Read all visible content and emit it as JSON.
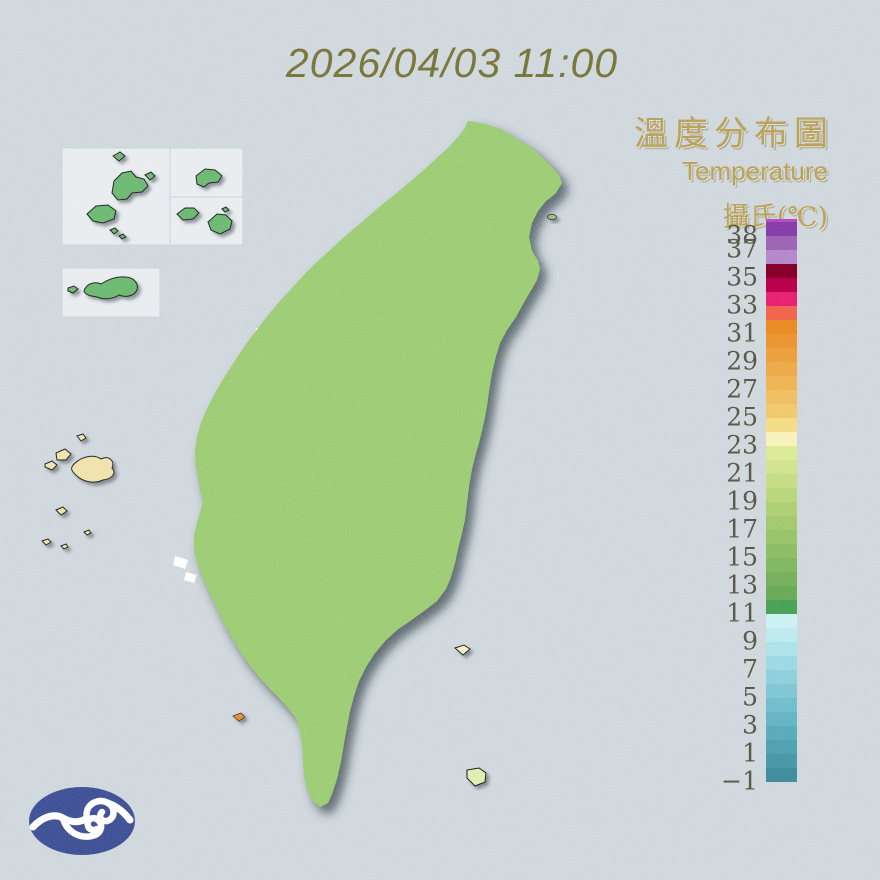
{
  "header": {
    "datetime": "2026/04/03 11:00"
  },
  "titles": {
    "zh": "溫度分布圖",
    "en": "Temperature",
    "unit": "攝氏(℃)"
  },
  "legend": {
    "scale_top_value": 39,
    "cap_color": "#B03FC0",
    "labels": [
      "38",
      "37",
      "35",
      "33",
      "31",
      "29",
      "27",
      "25",
      "23",
      "21",
      "19",
      "17",
      "15",
      "13",
      "11",
      "9",
      "7",
      "5",
      "3",
      "1",
      "−1"
    ],
    "bands": [
      {
        "t": 38,
        "c": "#7C33A0"
      },
      {
        "t": 37,
        "c": "#9659AF"
      },
      {
        "t": 36,
        "c": "#AD80C5"
      },
      {
        "t": 35,
        "c": "#7D001E"
      },
      {
        "t": 34,
        "c": "#B3003F"
      },
      {
        "t": 33,
        "c": "#E51968"
      },
      {
        "t": 32,
        "c": "#EE5B43"
      },
      {
        "t": 31,
        "c": "#E8821B"
      },
      {
        "t": 30,
        "c": "#E98D27"
      },
      {
        "t": 29,
        "c": "#EA9833"
      },
      {
        "t": 28,
        "c": "#ECA33F"
      },
      {
        "t": 27,
        "c": "#EDAE4B"
      },
      {
        "t": 26,
        "c": "#EFB957"
      },
      {
        "t": 25,
        "c": "#F0C463"
      },
      {
        "t": 24,
        "c": "#F3D97E"
      },
      {
        "t": 23,
        "c": "#F6F0B5"
      },
      {
        "t": 22,
        "c": "#D9E88E"
      },
      {
        "t": 21,
        "c": "#CDE185"
      },
      {
        "t": 20,
        "c": "#C1DA7C"
      },
      {
        "t": 19,
        "c": "#B4D373"
      },
      {
        "t": 18,
        "c": "#A8CC6B"
      },
      {
        "t": 17,
        "c": "#9CC565"
      },
      {
        "t": 16,
        "c": "#90BF5F"
      },
      {
        "t": 15,
        "c": "#84B85B"
      },
      {
        "t": 14,
        "c": "#78B157"
      },
      {
        "t": 13,
        "c": "#6CAA53"
      },
      {
        "t": 12,
        "c": "#60A34F"
      },
      {
        "t": 11,
        "c": "#3F9A4B"
      },
      {
        "t": 10,
        "c": "#C8F0F2"
      },
      {
        "t": 9,
        "c": "#B7E9EE"
      },
      {
        "t": 8,
        "c": "#A6E0E8"
      },
      {
        "t": 7,
        "c": "#96D6E1"
      },
      {
        "t": 6,
        "c": "#86CCD9"
      },
      {
        "t": 5,
        "c": "#77C2D1"
      },
      {
        "t": 4,
        "c": "#69B8C8"
      },
      {
        "t": 3,
        "c": "#5CAEBF"
      },
      {
        "t": 2,
        "c": "#50A4B5"
      },
      {
        "t": 1,
        "c": "#469AAA"
      },
      {
        "t": 0,
        "c": "#3E90A0"
      },
      {
        "t": -1,
        "c": "#368495"
      }
    ]
  },
  "colors": {
    "background": "#CCD5DB",
    "date_title": "#6F6D2F",
    "gold_title": "#B39A4F",
    "legend_label": "#4E4E3C",
    "logo_blue": "#36478E",
    "inset_island_green": "#63B467",
    "penghu_cream": "#EFE0A5",
    "map_orange": "#EA9231",
    "map_green": "#97C86C",
    "map_mountain_teal": "#79C6D6"
  }
}
